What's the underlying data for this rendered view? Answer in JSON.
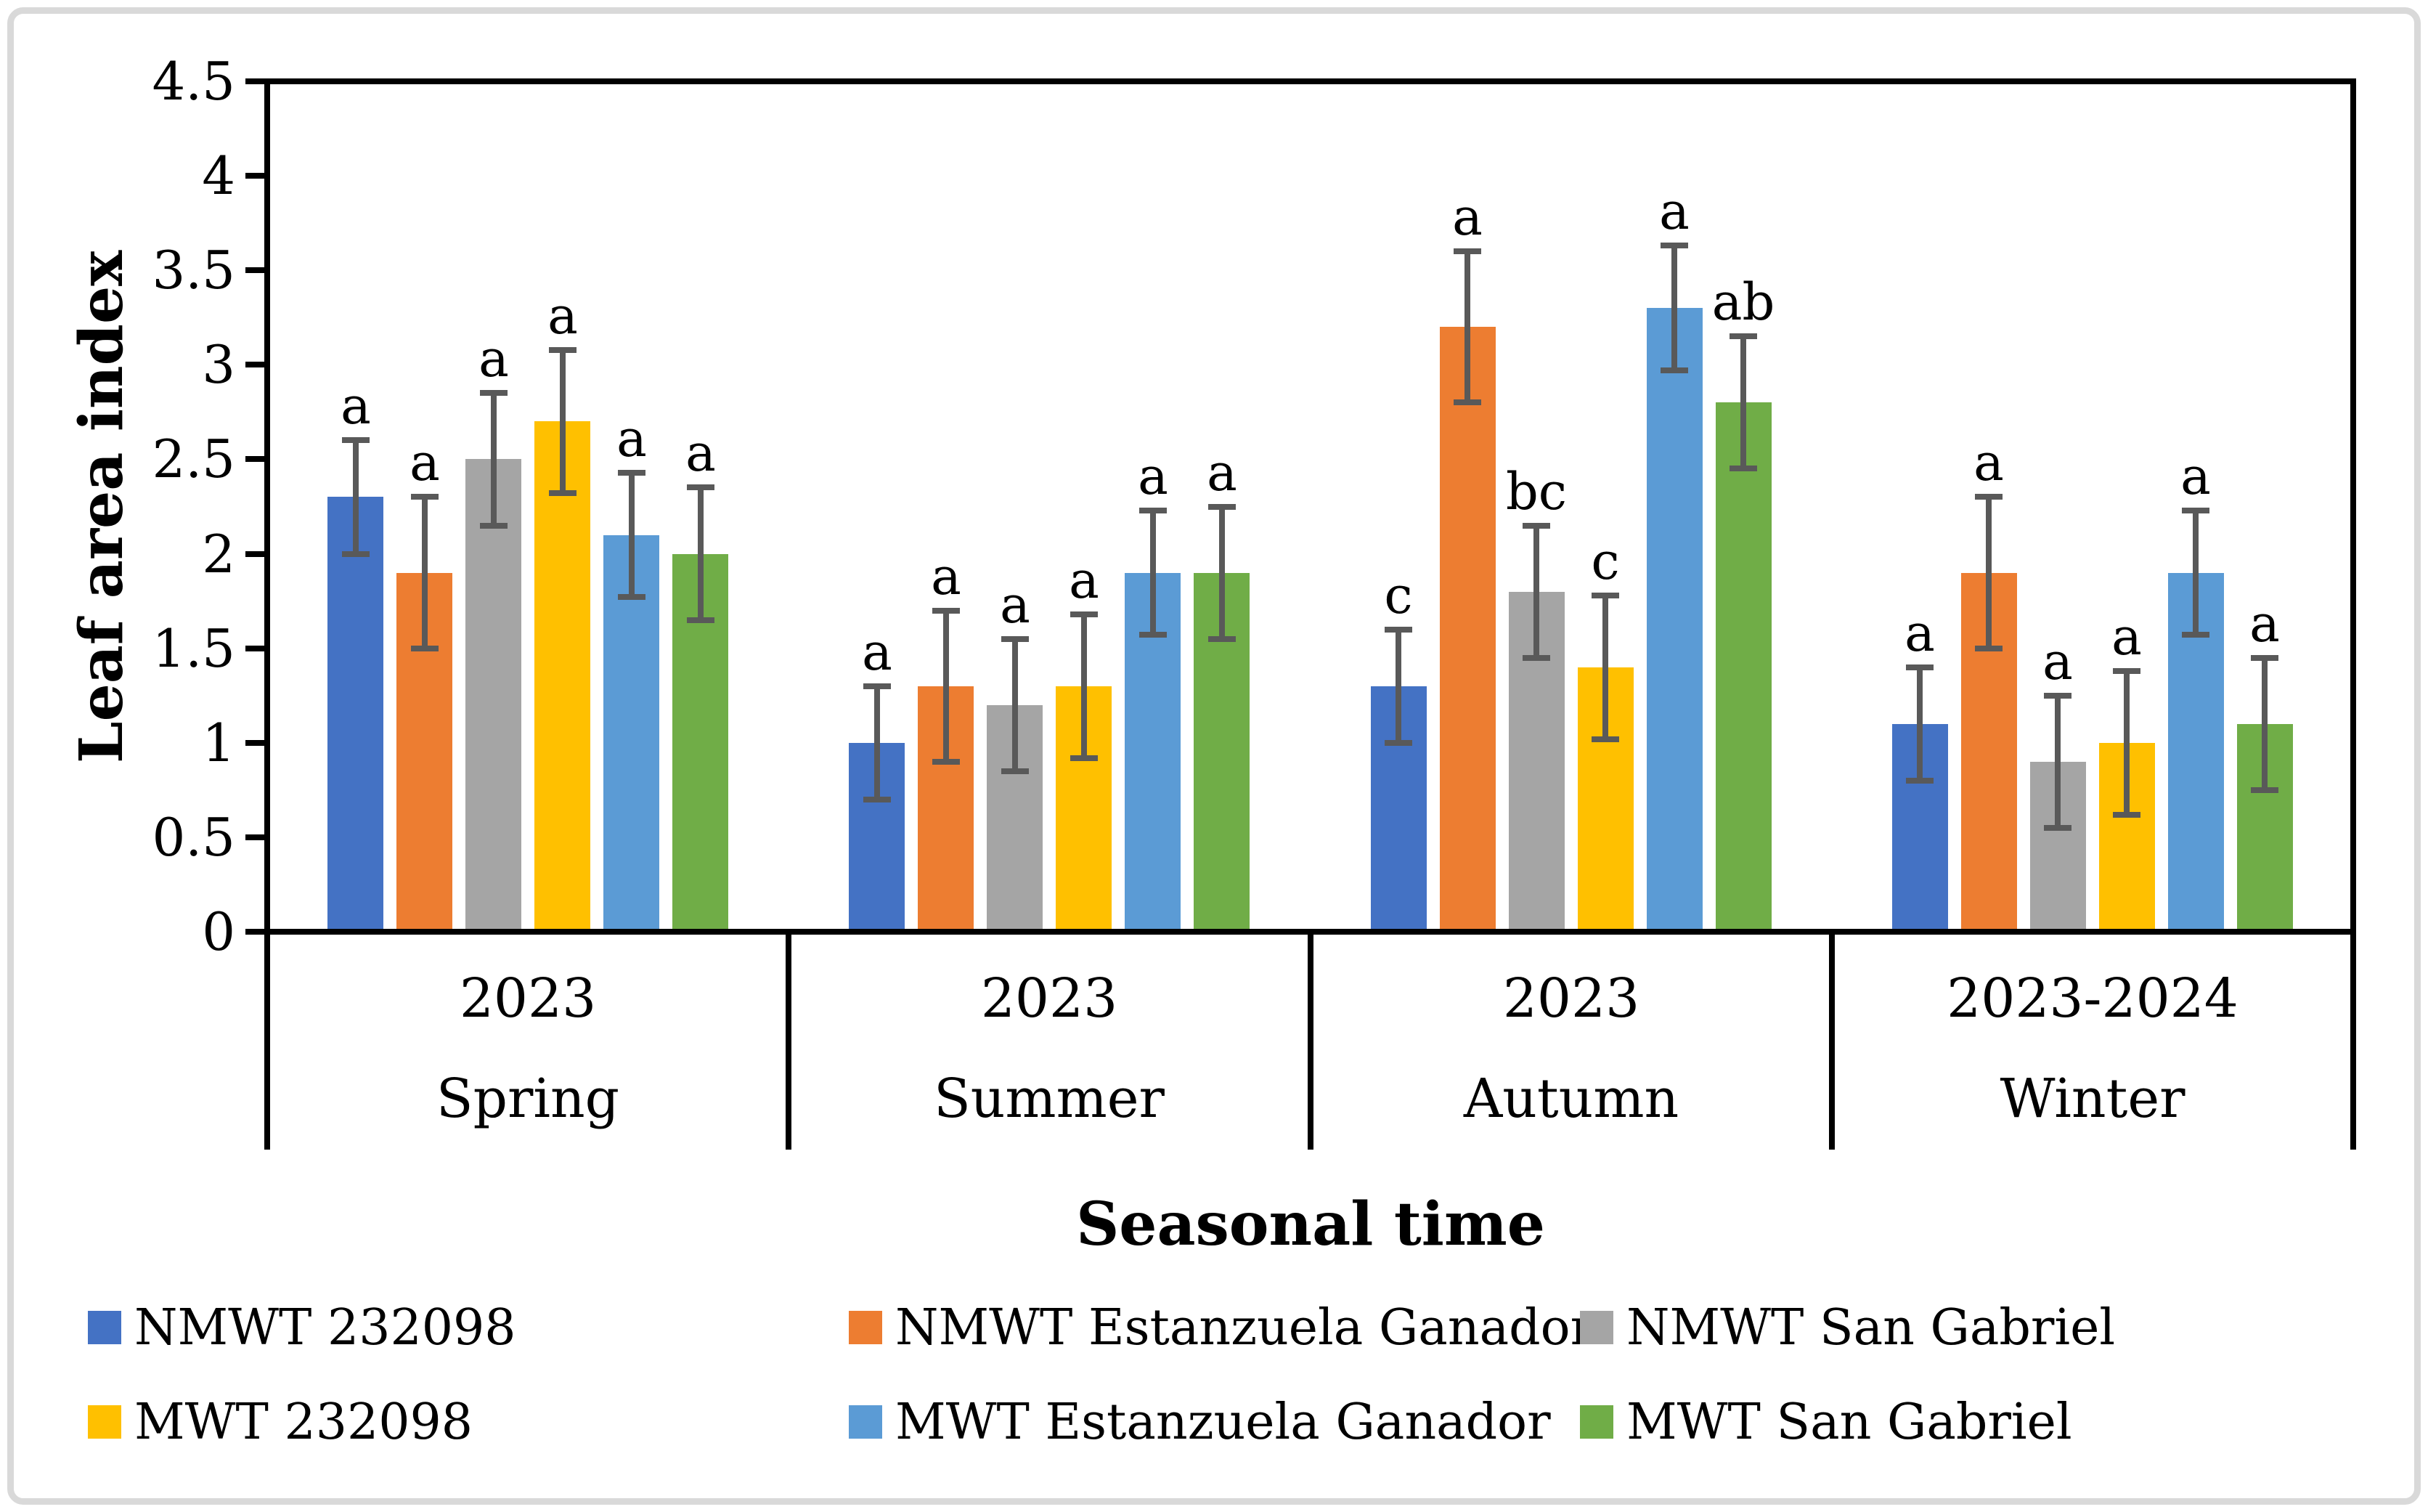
{
  "figure": {
    "background_color": "#ffffff",
    "border_color": "#d9d9d9",
    "axis_line_color": "#000000",
    "text_color": "#000000"
  },
  "chart_data": {
    "type": "bar",
    "title": "",
    "xlabel": "Seasonal time",
    "ylabel": "Leaf area index",
    "ylim": [
      0,
      4.5
    ],
    "ytick_labels": [
      "0",
      "0.5",
      "1",
      "1.5",
      "2",
      "2.5",
      "3",
      "3.5",
      "4",
      "4.5"
    ],
    "grid": false,
    "legend_position": "bottom",
    "error_bar_color": "#595959",
    "groups": [
      {
        "year": "2023",
        "season": "Spring"
      },
      {
        "year": "2023",
        "season": "Summer"
      },
      {
        "year": "2023",
        "season": "Autumn"
      },
      {
        "year": "2023-2024",
        "season": "Winter"
      }
    ],
    "series": [
      {
        "name": "NMWT 232098",
        "color": "#4472C4",
        "values": [
          2.3,
          1.0,
          1.3,
          1.1
        ],
        "error": 0.3,
        "letters": [
          "a",
          "a",
          "c",
          "a"
        ]
      },
      {
        "name": "NMWT Estanzuela Ganador",
        "color": "#ED7D31",
        "values": [
          1.9,
          1.3,
          3.2,
          1.9
        ],
        "error": 0.4,
        "letters": [
          "a",
          "a",
          "a",
          "a"
        ]
      },
      {
        "name": "NMWT San Gabriel",
        "color": "#A5A5A5",
        "values": [
          2.5,
          1.2,
          1.8,
          0.9
        ],
        "error": 0.35,
        "letters": [
          "a",
          "a",
          "bc",
          "a"
        ]
      },
      {
        "name": "MWT 232098",
        "color": "#FFC000",
        "values": [
          2.7,
          1.3,
          1.4,
          1.0
        ],
        "error": 0.38,
        "letters": [
          "a",
          "a",
          "c",
          "a"
        ]
      },
      {
        "name": "MWT Estanzuela Ganador",
        "color": "#5B9BD5",
        "values": [
          2.1,
          1.9,
          3.3,
          1.9
        ],
        "error": 0.33,
        "letters": [
          "a",
          "a",
          "a",
          "a"
        ]
      },
      {
        "name": "MWT San Gabriel",
        "color": "#70AD47",
        "values": [
          2.0,
          1.9,
          2.8,
          1.1
        ],
        "error": 0.35,
        "letters": [
          "a",
          "a",
          "ab",
          "a"
        ]
      }
    ]
  }
}
